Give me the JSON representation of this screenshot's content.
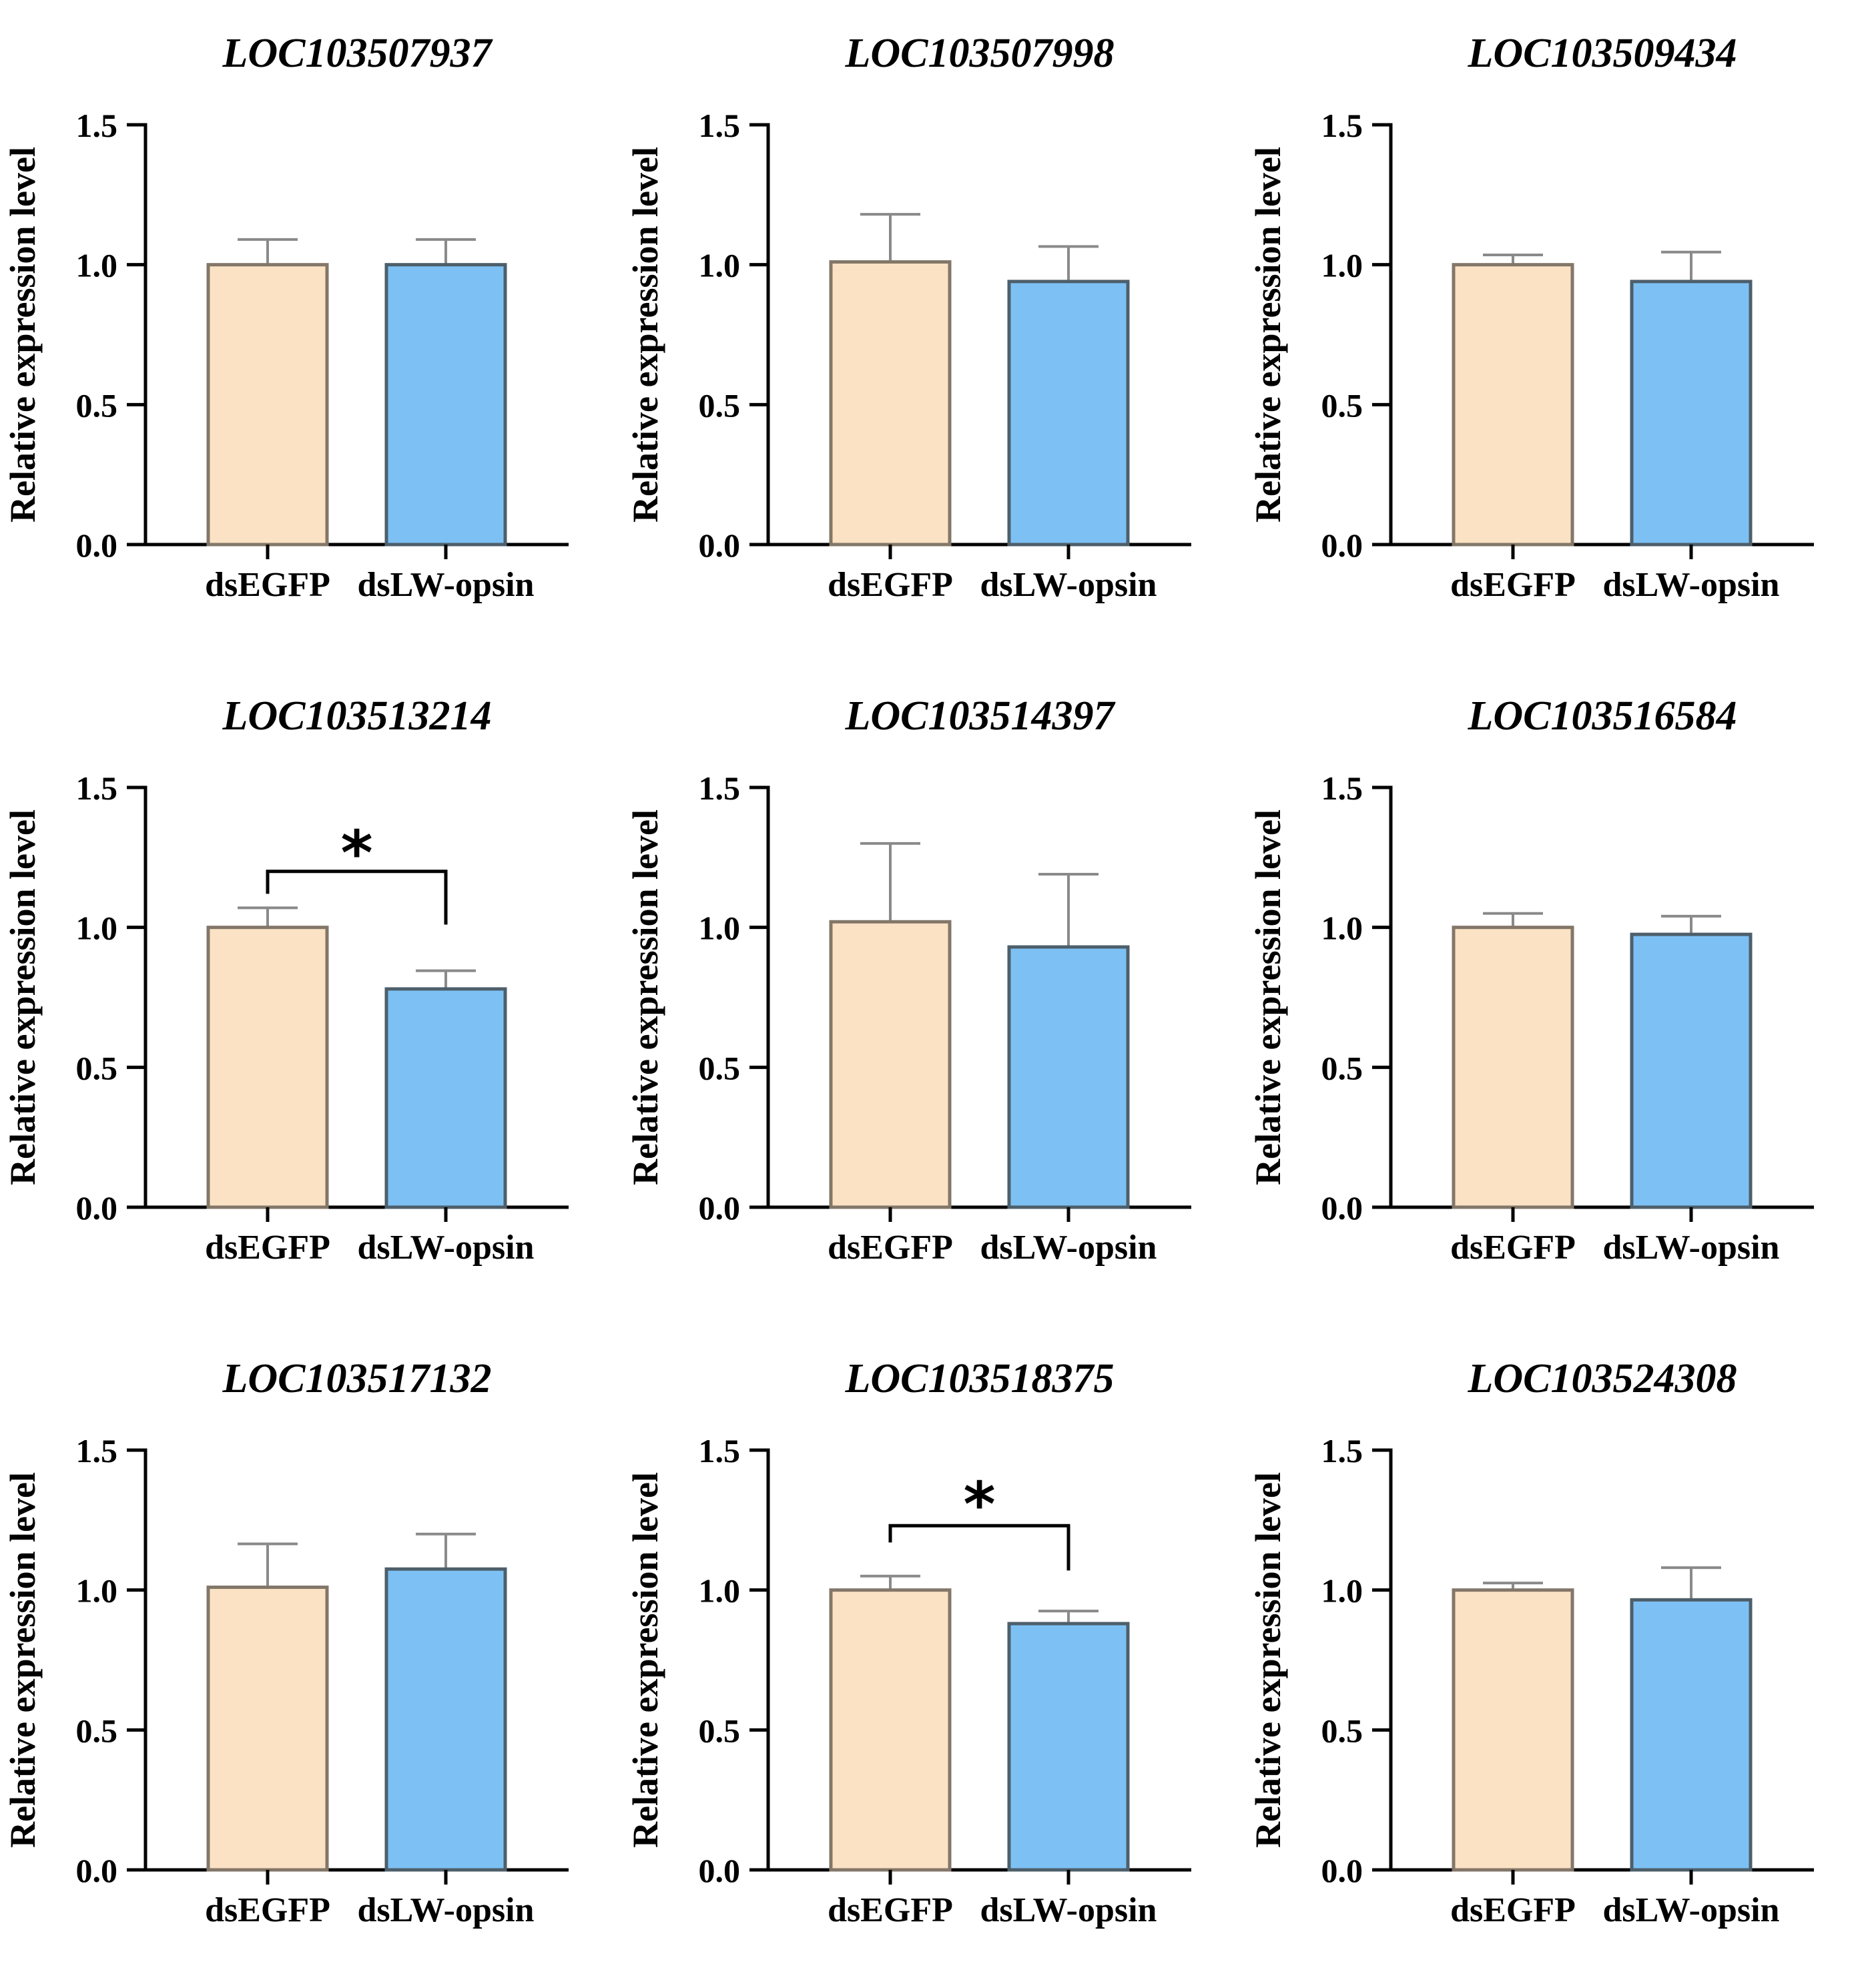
{
  "figure": {
    "ylabel": "Relative expression level",
    "categories": [
      "dsEGFP",
      "dsLW-opsin"
    ],
    "ytick_labels": [
      "0.0",
      "0.5",
      "1.0",
      "1.5"
    ],
    "ylim": [
      0,
      1.5
    ]
  },
  "style": {
    "background": "#ffffff",
    "axis_color": "#000000",
    "text_color": "#000000",
    "error_bar_color": "#8a8a8a",
    "egfp_fill": "#fbe2c4",
    "egfp_border": "#837769",
    "lw_fill": "#7dc1f4",
    "lw_border": "#4d5f6b",
    "significance_color": "#000000"
  },
  "chart_data": [
    {
      "type": "bar",
      "title": "LOC103507937",
      "categories": [
        "dsEGFP",
        "dsLW-opsin"
      ],
      "values": [
        1.0,
        1.0
      ],
      "errors_upper": [
        0.09,
        0.09
      ],
      "ylim": [
        0,
        1.5
      ],
      "significance": null
    },
    {
      "type": "bar",
      "title": "LOC103507998",
      "categories": [
        "dsEGFP",
        "dsLW-opsin"
      ],
      "values": [
        1.01,
        0.94
      ],
      "errors_upper": [
        0.17,
        0.125
      ],
      "ylim": [
        0,
        1.5
      ],
      "significance": null
    },
    {
      "type": "bar",
      "title": "LOC103509434",
      "categories": [
        "dsEGFP",
        "dsLW-opsin"
      ],
      "values": [
        1.0,
        0.94
      ],
      "errors_upper": [
        0.035,
        0.105
      ],
      "ylim": [
        0,
        1.5
      ],
      "significance": null
    },
    {
      "type": "bar",
      "title": "LOC103513214",
      "categories": [
        "dsEGFP",
        "dsLW-opsin"
      ],
      "values": [
        1.0,
        0.78
      ],
      "errors_upper": [
        0.07,
        0.065
      ],
      "ylim": [
        0,
        1.5
      ],
      "significance": {
        "label": "*",
        "bracket_y": 1.2,
        "left_end_y": 1.12,
        "right_end_y": 1.01,
        "star_y": 1.3
      }
    },
    {
      "type": "bar",
      "title": "LOC103514397",
      "categories": [
        "dsEGFP",
        "dsLW-opsin"
      ],
      "values": [
        1.02,
        0.93
      ],
      "errors_upper": [
        0.28,
        0.26
      ],
      "ylim": [
        0,
        1.5
      ],
      "significance": null
    },
    {
      "type": "bar",
      "title": "LOC103516584",
      "categories": [
        "dsEGFP",
        "dsLW-opsin"
      ],
      "values": [
        1.0,
        0.975
      ],
      "errors_upper": [
        0.05,
        0.065
      ],
      "ylim": [
        0,
        1.5
      ],
      "significance": null
    },
    {
      "type": "bar",
      "title": "LOC103517132",
      "categories": [
        "dsEGFP",
        "dsLW-opsin"
      ],
      "values": [
        1.01,
        1.075
      ],
      "errors_upper": [
        0.155,
        0.125
      ],
      "ylim": [
        0,
        1.5
      ],
      "significance": null
    },
    {
      "type": "bar",
      "title": "LOC103518375",
      "categories": [
        "dsEGFP",
        "dsLW-opsin"
      ],
      "values": [
        1.0,
        0.88
      ],
      "errors_upper": [
        0.05,
        0.045
      ],
      "ylim": [
        0,
        1.5
      ],
      "significance": {
        "label": "*",
        "bracket_y": 1.23,
        "left_end_y": 1.17,
        "right_end_y": 1.07,
        "star_y": 1.34
      }
    },
    {
      "type": "bar",
      "title": "LOC103524308",
      "categories": [
        "dsEGFP",
        "dsLW-opsin"
      ],
      "values": [
        1.0,
        0.965
      ],
      "errors_upper": [
        0.025,
        0.115
      ],
      "ylim": [
        0,
        1.5
      ],
      "significance": null
    }
  ]
}
